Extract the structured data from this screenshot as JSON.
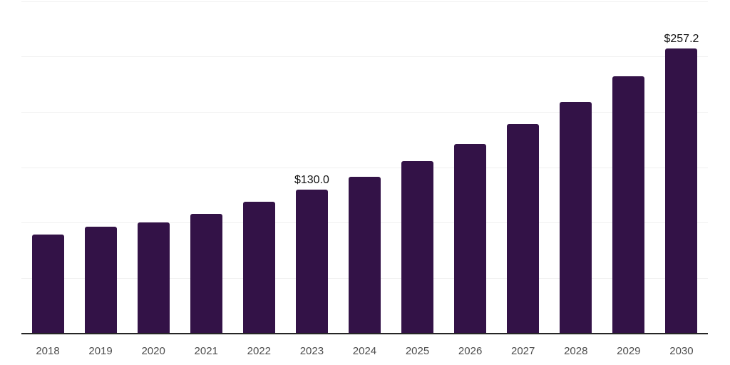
{
  "chart_data": {
    "type": "bar",
    "title": "",
    "xlabel": "",
    "ylabel": "",
    "categories": [
      "2018",
      "2019",
      "2020",
      "2021",
      "2022",
      "2023",
      "2024",
      "2025",
      "2026",
      "2027",
      "2028",
      "2029",
      "2030"
    ],
    "values": [
      89.6,
      96.8,
      100.6,
      108.3,
      119.2,
      130.0,
      141.8,
      156.1,
      171.4,
      189.3,
      209.4,
      232.7,
      257.2
    ],
    "data_labels": {
      "2023": "$130.0",
      "2030": "$257.2"
    },
    "ylim": [
      0,
      300
    ],
    "grid_step": 50,
    "grid": "horizontal-light",
    "legend_position": "none",
    "colors": {
      "bar": "#331247",
      "gridline": "#f0f0f0",
      "axis_line": "#262626",
      "tick_label": "#4d4d4d",
      "value_label": "#111111",
      "background": "#ffffff"
    }
  }
}
